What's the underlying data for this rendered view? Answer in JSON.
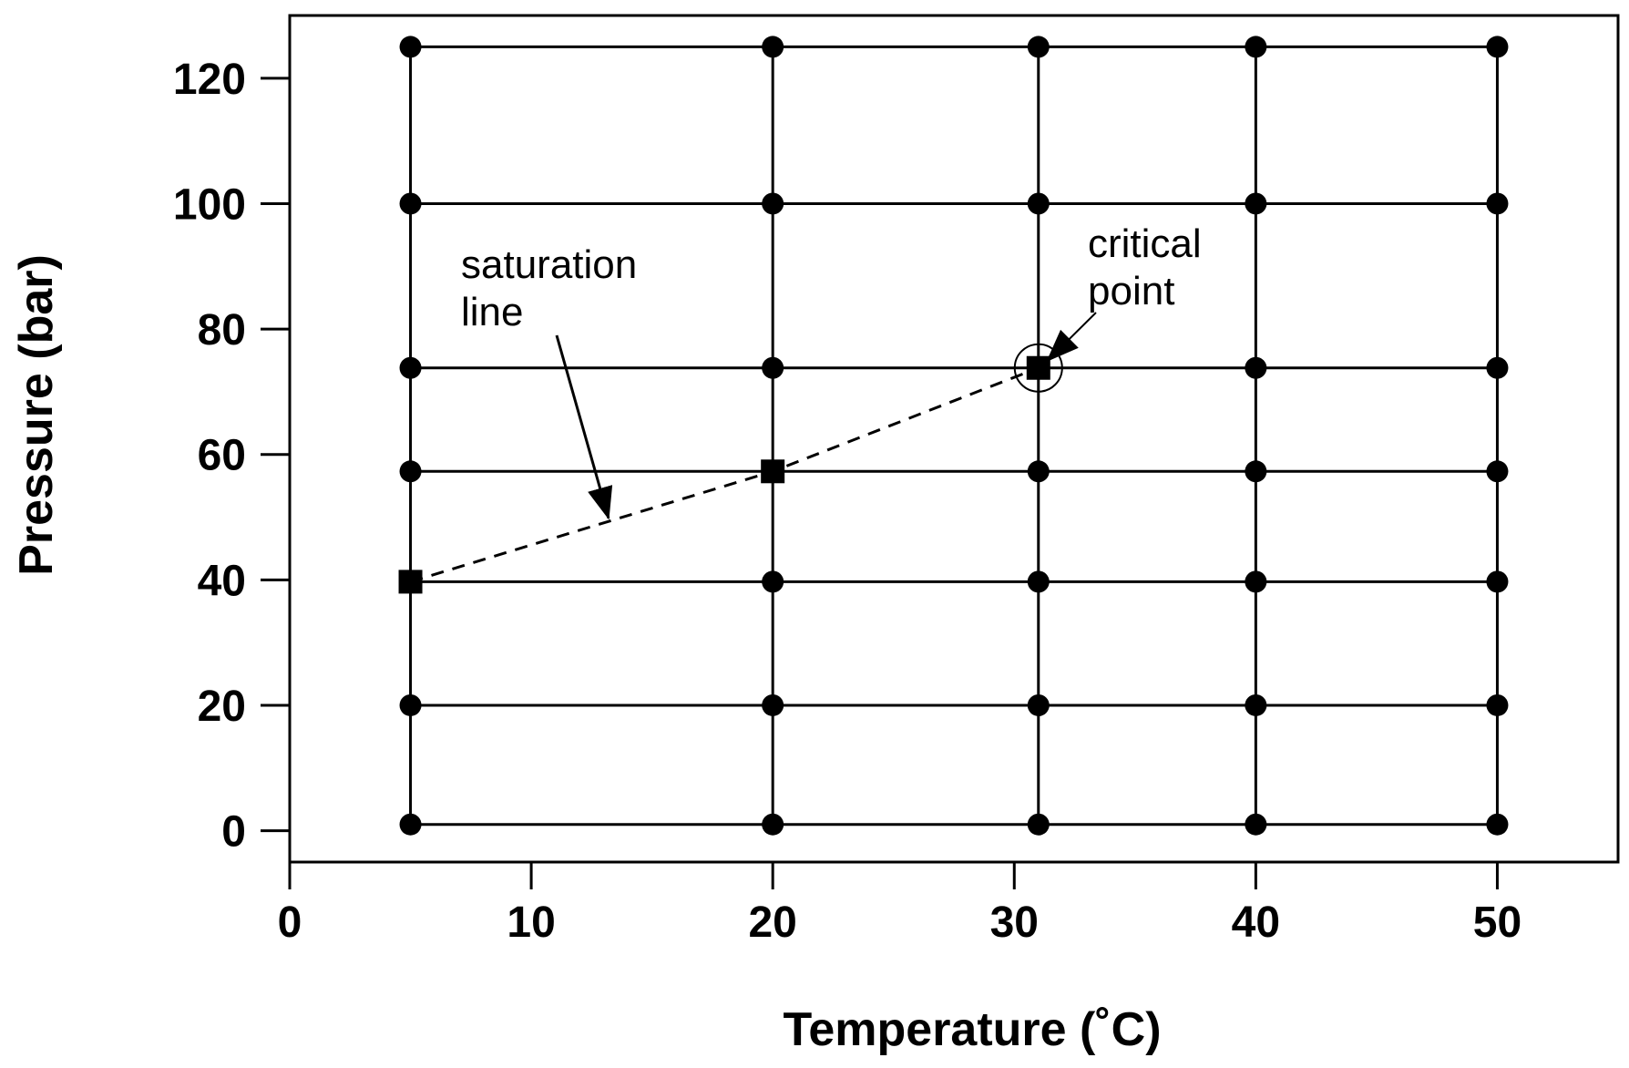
{
  "chart_data": {
    "type": "scatter",
    "xlabel": "Temperature (˚C)",
    "ylabel": "Pressure (bar)",
    "xlim": [
      0,
      55
    ],
    "ylim": [
      -5,
      130
    ],
    "xticks": [
      0,
      10,
      20,
      30,
      40,
      50
    ],
    "yticks": [
      0,
      20,
      40,
      60,
      80,
      100,
      120
    ],
    "grid": false,
    "series": [
      {
        "marker": "circle",
        "line": "solid grid connecting points",
        "temperatures": [
          5,
          20,
          31,
          40,
          50
        ],
        "pressures": [
          1,
          20,
          39.7,
          57.3,
          73.8,
          100,
          125
        ]
      },
      {
        "marker": "square",
        "line": "dashed",
        "points": [
          [
            5,
            39.7
          ],
          [
            20,
            57.3
          ],
          [
            31,
            73.8
          ]
        ]
      }
    ],
    "annotations": [
      {
        "text": "saturation line",
        "lines": [
          "saturation",
          "line"
        ],
        "target": [
          13.2,
          51
        ]
      },
      {
        "text": "critical point",
        "lines": [
          "critical",
          "point"
        ],
        "target": [
          31,
          73.8
        ]
      }
    ]
  }
}
